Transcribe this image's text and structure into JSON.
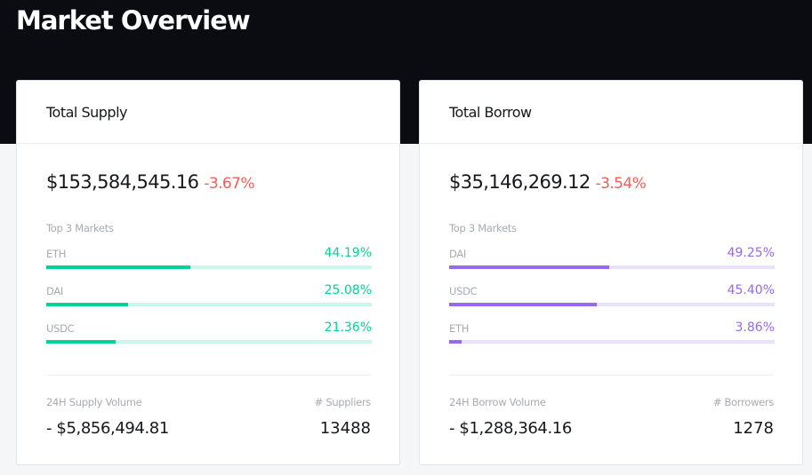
{
  "header": {
    "title": "Market Overview"
  },
  "cards": [
    {
      "title": "Total Supply",
      "total": "$153,584,545.16",
      "change": "-3.67%",
      "color": "#00d395",
      "markets_title": "Top 3 Markets",
      "markets": [
        {
          "name": "ETH",
          "share": {
            "value": 44.19,
            "label": "44.19%"
          }
        },
        {
          "name": "DAI",
          "share": {
            "value": 25.08,
            "label": "25.08%"
          }
        },
        {
          "name": "USDC",
          "share": {
            "value": 21.36,
            "label": "21.36%"
          }
        }
      ],
      "volume_label": "24H Supply Volume",
      "volume": "- $5,856,494.81",
      "count_label": "# Suppliers",
      "count": 13488
    },
    {
      "title": "Total Borrow",
      "total": "$35,146,269.12",
      "change": "-3.54%",
      "color": "#9669ed",
      "markets_title": "Top 3 Markets",
      "markets": [
        {
          "name": "DAI",
          "share": {
            "value": 49.25,
            "label": "49.25%"
          }
        },
        {
          "name": "USDC",
          "share": {
            "value": 45.4,
            "label": "45.40%"
          }
        },
        {
          "name": "ETH",
          "share": {
            "value": 3.86,
            "label": "3.86%"
          }
        }
      ],
      "volume_label": "24H Borrow Volume",
      "volume": "- $1,288,364.16",
      "count_label": "# Borrowers",
      "count": 1278
    }
  ]
}
